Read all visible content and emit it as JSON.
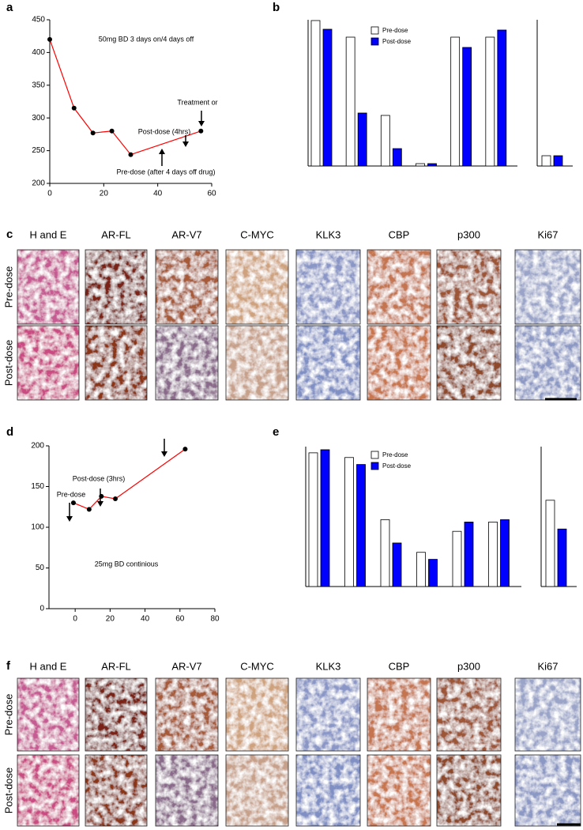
{
  "chart_data": [
    {
      "type": "line",
      "panel": "a",
      "x": [
        0,
        9,
        16,
        23,
        30,
        56
      ],
      "values": [
        420,
        315,
        277,
        280,
        244,
        280
      ],
      "color": "#ff0000",
      "xlim": [
        0,
        60
      ],
      "xticks": [
        0,
        20,
        40,
        60
      ],
      "ylim": [
        200,
        450
      ],
      "yticks": [
        200,
        250,
        300,
        350,
        400,
        450
      ],
      "annotations": [
        "50mg BD 3 days on/4 days off",
        "Treatment or",
        "Post-dose (4hrs)",
        "Pre-dose (after 4 days off drug)"
      ]
    },
    {
      "type": "bar",
      "panel": "b",
      "categories": [
        null,
        null,
        null,
        null,
        null,
        null
      ],
      "ylim": [
        0,
        185
      ],
      "legend": "top",
      "series": [
        {
          "name": "Pre-dose",
          "color": "#ffffff",
          "values": [
            184,
            163,
            64,
            3,
            163,
            163
          ]
        },
        {
          "name": "Post-dose",
          "color": "#0000ff",
          "values": [
            173,
            67,
            22,
            3,
            150,
            172
          ]
        }
      ]
    },
    {
      "type": "bar",
      "categories": [
        null
      ],
      "ylim": [
        0,
        185
      ],
      "series": [
        {
          "color": "#ffffff",
          "values": [
            13
          ]
        },
        {
          "color": "#0000ff",
          "values": [
            13
          ]
        }
      ]
    },
    {
      "type": "line",
      "panel": "d",
      "x": [
        -1,
        8,
        15,
        23,
        63
      ],
      "values": [
        130,
        122,
        138,
        135,
        196
      ],
      "color": "#ff0000",
      "xlim": [
        -15,
        80
      ],
      "xticks": [
        0,
        20,
        40,
        60,
        80
      ],
      "ylim": [
        0,
        200
      ],
      "yticks": [
        0,
        50,
        100,
        150,
        200
      ],
      "annotations": [
        "Post-dose (3hrs)",
        "Pre-dose",
        "25mg BD continious"
      ]
    },
    {
      "type": "bar",
      "panel": "e",
      "categories": [
        null,
        null,
        null,
        null,
        null,
        null
      ],
      "ylim": [
        0,
        180
      ],
      "legend": "top",
      "series": [
        {
          "name": "Pre-dose",
          "color": "#ffffff",
          "values": [
            172,
            166,
            86,
            44,
            71,
            83
          ]
        },
        {
          "name": "Post-dose",
          "color": "#0000ff",
          "values": [
            176,
            157,
            56,
            35,
            83,
            86
          ]
        }
      ]
    },
    {
      "type": "bar",
      "categories": [
        null
      ],
      "ylim": [
        0,
        180
      ],
      "series": [
        {
          "color": "#ffffff",
          "values": [
            111
          ]
        },
        {
          "color": "#0000ff",
          "values": [
            74
          ]
        }
      ]
    }
  ],
  "image_panels": [
    {
      "panel": "c",
      "columns": [
        "H and E",
        "AR-FL",
        "AR-V7",
        "C-MYC",
        "KLK3",
        "CBP",
        "p300",
        "Ki67"
      ],
      "rows": [
        "Pre-dose",
        "Post-dose"
      ]
    },
    {
      "panel": "f",
      "columns": [
        "H and E",
        "AR-FL",
        "AR-V7",
        "C-MYC",
        "KLK3",
        "CBP",
        "p300",
        "Ki67"
      ],
      "rows": [
        "Pre-dose",
        "Post-dose"
      ]
    }
  ]
}
